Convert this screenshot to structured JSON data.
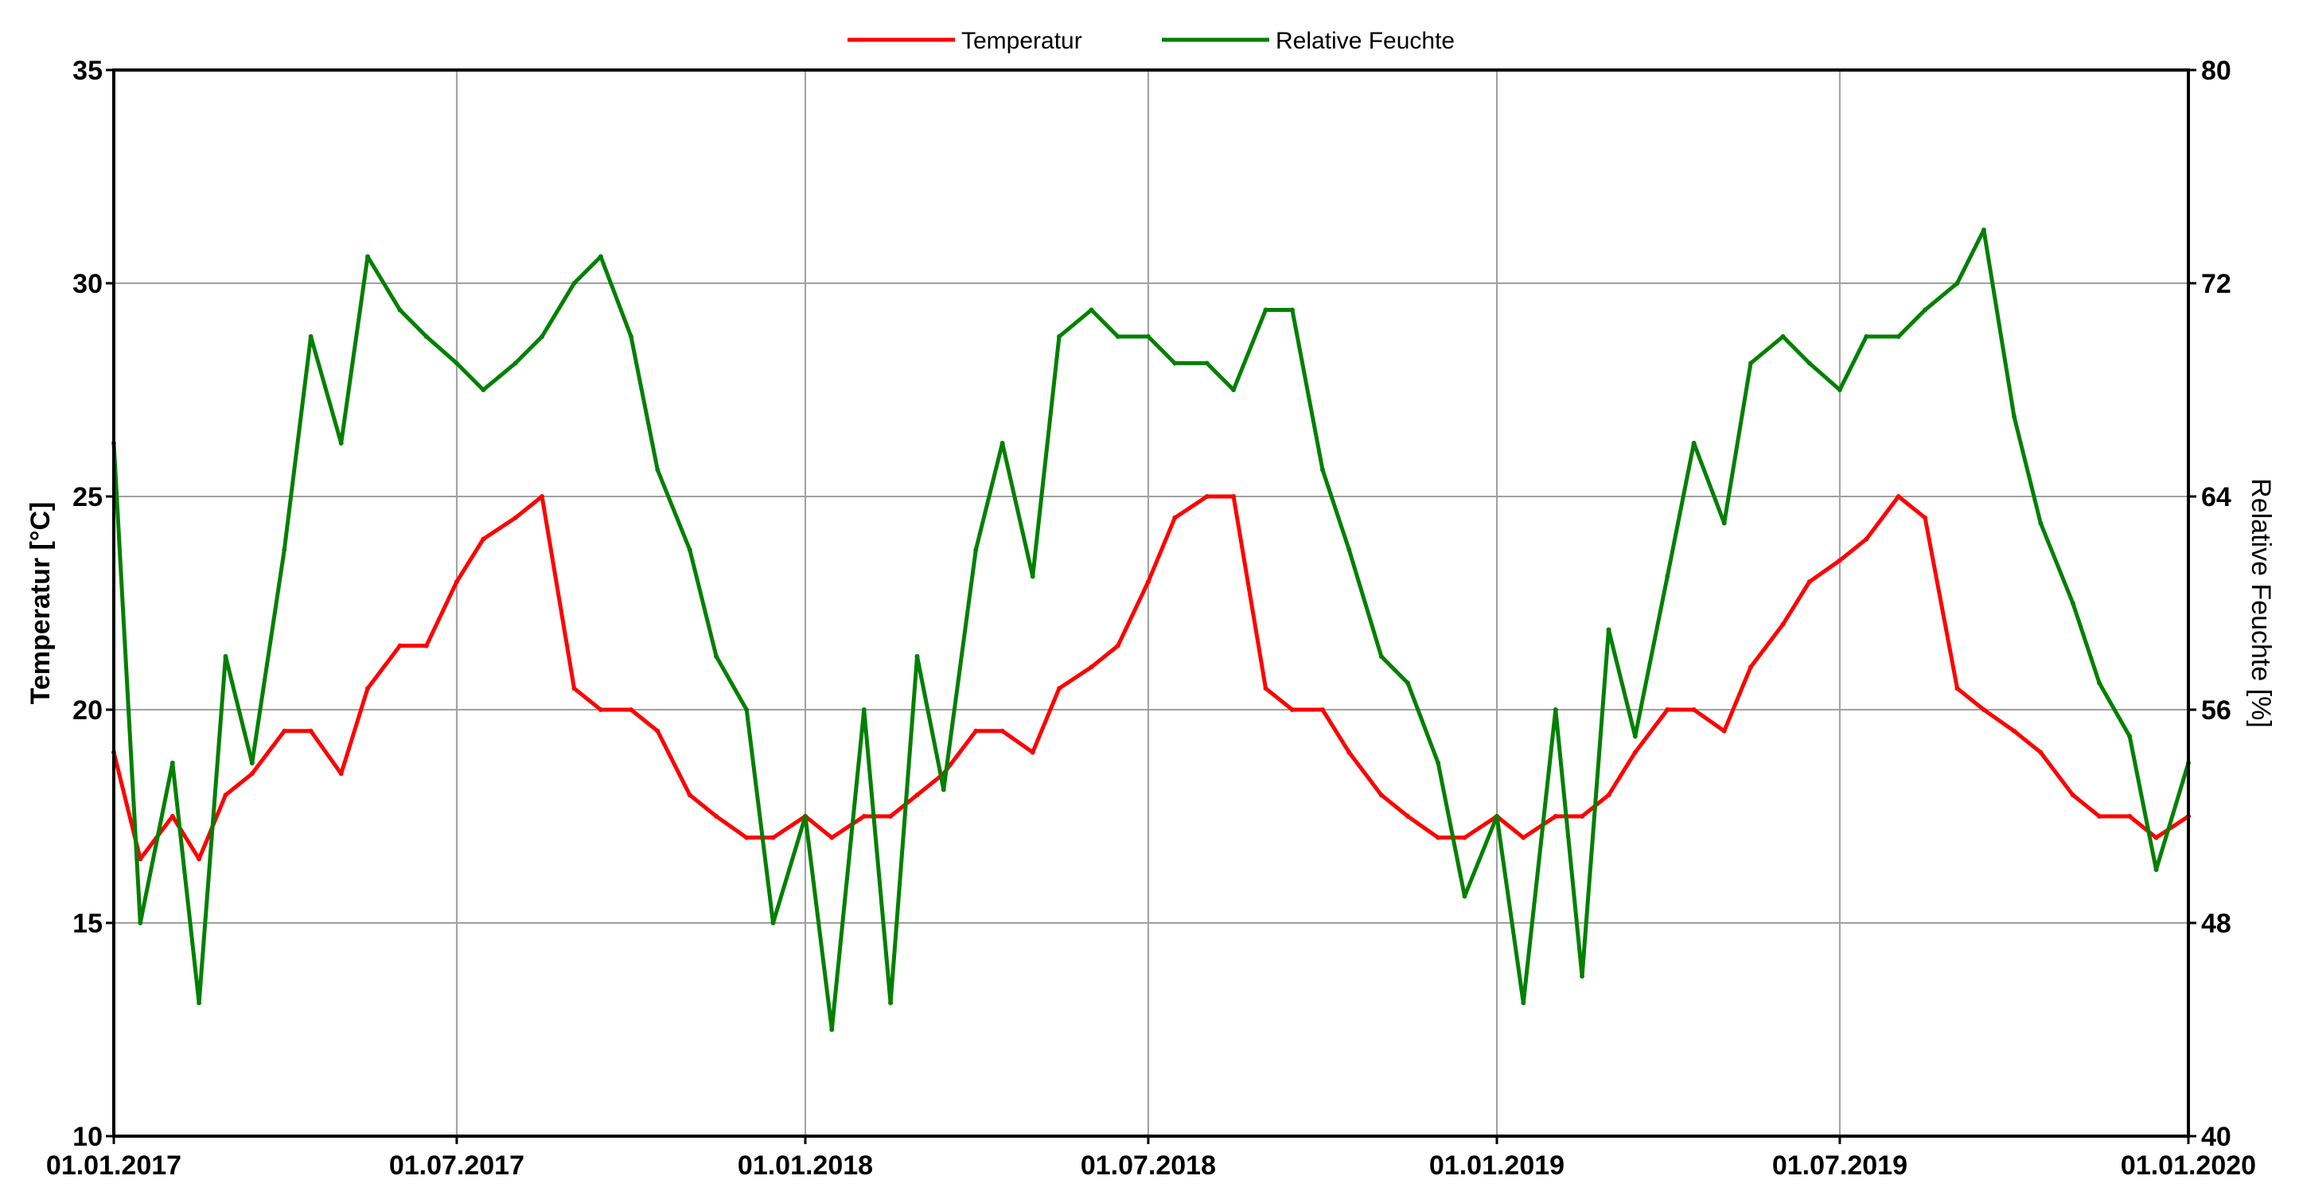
{
  "chart_data": {
    "type": "line",
    "title": "",
    "legend_placement": "top-center",
    "grid": true,
    "xlabel": "",
    "ylabel_left": "Temperatur [°C]",
    "ylabel_right": "Relative Feuchte [%]",
    "x_ticks": [
      "01.01.2017",
      "01.07.2017",
      "01.01.2018",
      "01.07.2018",
      "01.01.2019",
      "01.07.2019",
      "01.01.2020"
    ],
    "x_range": [
      "01.01.2017",
      "01.01.2020"
    ],
    "y_left_ticks": [
      "10",
      "15",
      "20",
      "25",
      "30",
      "35"
    ],
    "y_left_range": [
      10,
      35
    ],
    "y_right_ticks": [
      "40",
      "48",
      "56",
      "64",
      "72",
      "80"
    ],
    "y_right_range": [
      40,
      80
    ],
    "series": [
      {
        "name": "Temperatur",
        "axis": "left",
        "color": "#ff0000",
        "x": [
          "2017-01-01",
          "2017-01-15",
          "2017-02-01",
          "2017-02-15",
          "2017-03-01",
          "2017-03-15",
          "2017-04-01",
          "2017-04-15",
          "2017-05-01",
          "2017-05-15",
          "2017-06-01",
          "2017-06-15",
          "2017-07-01",
          "2017-07-15",
          "2017-08-01",
          "2017-08-15",
          "2017-09-01",
          "2017-09-15",
          "2017-10-01",
          "2017-10-15",
          "2017-11-01",
          "2017-11-15",
          "2017-12-01",
          "2017-12-15",
          "2018-01-01",
          "2018-01-15",
          "2018-02-01",
          "2018-02-15",
          "2018-03-01",
          "2018-03-15",
          "2018-04-01",
          "2018-04-15",
          "2018-05-01",
          "2018-05-15",
          "2018-06-01",
          "2018-06-15",
          "2018-07-01",
          "2018-07-15",
          "2018-08-01",
          "2018-08-15",
          "2018-09-01",
          "2018-09-15",
          "2018-10-01",
          "2018-10-15",
          "2018-11-01",
          "2018-11-15",
          "2018-12-01",
          "2018-12-15",
          "2019-01-01",
          "2019-01-15",
          "2019-02-01",
          "2019-02-15",
          "2019-03-01",
          "2019-03-15",
          "2019-04-01",
          "2019-04-15",
          "2019-05-01",
          "2019-05-15",
          "2019-06-01",
          "2019-06-15",
          "2019-07-01",
          "2019-07-15",
          "2019-08-01",
          "2019-08-15",
          "2019-09-01",
          "2019-09-15",
          "2019-10-01",
          "2019-10-15",
          "2019-11-01",
          "2019-11-15",
          "2019-12-01",
          "2019-12-15",
          "2020-01-01"
        ],
        "y": [
          19.0,
          16.5,
          17.5,
          16.5,
          18.0,
          18.5,
          19.5,
          19.5,
          18.5,
          20.5,
          21.5,
          21.5,
          23.0,
          24.0,
          24.5,
          25.0,
          20.5,
          20.0,
          20.0,
          19.5,
          18.0,
          17.5,
          17.0,
          17.0,
          17.5,
          17.0,
          17.5,
          17.5,
          18.0,
          18.5,
          19.5,
          19.5,
          19.0,
          20.5,
          21.0,
          21.5,
          23.0,
          24.5,
          25.0,
          25.0,
          20.5,
          20.0,
          20.0,
          19.0,
          18.0,
          17.5,
          17.0,
          17.0,
          17.5,
          17.0,
          17.5,
          17.5,
          18.0,
          19.0,
          20.0,
          20.0,
          19.5,
          21.0,
          22.0,
          23.0,
          23.5,
          24.0,
          25.0,
          24.5,
          20.5,
          20.0,
          19.5,
          19.0,
          18.0,
          17.5,
          17.5,
          17.0,
          17.5
        ]
      },
      {
        "name": "Relative Feuchte",
        "axis": "right",
        "color": "#008000",
        "x": [
          "2017-01-01",
          "2017-01-15",
          "2017-02-01",
          "2017-02-15",
          "2017-03-01",
          "2017-03-15",
          "2017-04-01",
          "2017-04-15",
          "2017-05-01",
          "2017-05-15",
          "2017-06-01",
          "2017-06-15",
          "2017-07-01",
          "2017-07-15",
          "2017-08-01",
          "2017-08-15",
          "2017-09-01",
          "2017-09-15",
          "2017-10-01",
          "2017-10-15",
          "2017-11-01",
          "2017-11-15",
          "2017-12-01",
          "2017-12-15",
          "2018-01-01",
          "2018-01-15",
          "2018-02-01",
          "2018-02-15",
          "2018-03-01",
          "2018-03-15",
          "2018-04-01",
          "2018-04-15",
          "2018-05-01",
          "2018-05-15",
          "2018-06-01",
          "2018-06-15",
          "2018-07-01",
          "2018-07-15",
          "2018-08-01",
          "2018-08-15",
          "2018-09-01",
          "2018-09-15",
          "2018-10-01",
          "2018-10-15",
          "2018-11-01",
          "2018-11-15",
          "2018-12-01",
          "2018-12-15",
          "2019-01-01",
          "2019-01-15",
          "2019-02-01",
          "2019-02-15",
          "2019-03-01",
          "2019-03-15",
          "2019-04-01",
          "2019-04-15",
          "2019-05-01",
          "2019-05-15",
          "2019-06-01",
          "2019-06-15",
          "2019-07-01",
          "2019-07-15",
          "2019-08-01",
          "2019-08-15",
          "2019-09-01",
          "2019-09-15",
          "2019-10-01",
          "2019-10-15",
          "2019-11-01",
          "2019-11-15",
          "2019-12-01",
          "2019-12-15",
          "2020-01-01"
        ],
        "y": [
          66,
          48,
          54,
          45,
          58,
          54,
          62,
          70,
          66,
          73,
          71,
          70,
          69,
          68,
          69,
          70,
          72,
          73,
          70,
          65,
          62,
          58,
          56,
          48,
          52,
          44,
          56,
          45,
          58,
          53,
          62,
          66,
          61,
          70,
          71,
          70,
          70,
          69,
          69,
          68,
          71,
          71,
          65,
          62,
          58,
          57,
          54,
          49,
          52,
          45,
          56,
          46,
          59,
          55,
          61,
          66,
          63,
          69,
          70,
          69,
          68,
          70,
          70,
          71,
          72,
          74,
          67,
          63,
          60,
          57,
          55,
          50,
          54
        ]
      }
    ]
  }
}
